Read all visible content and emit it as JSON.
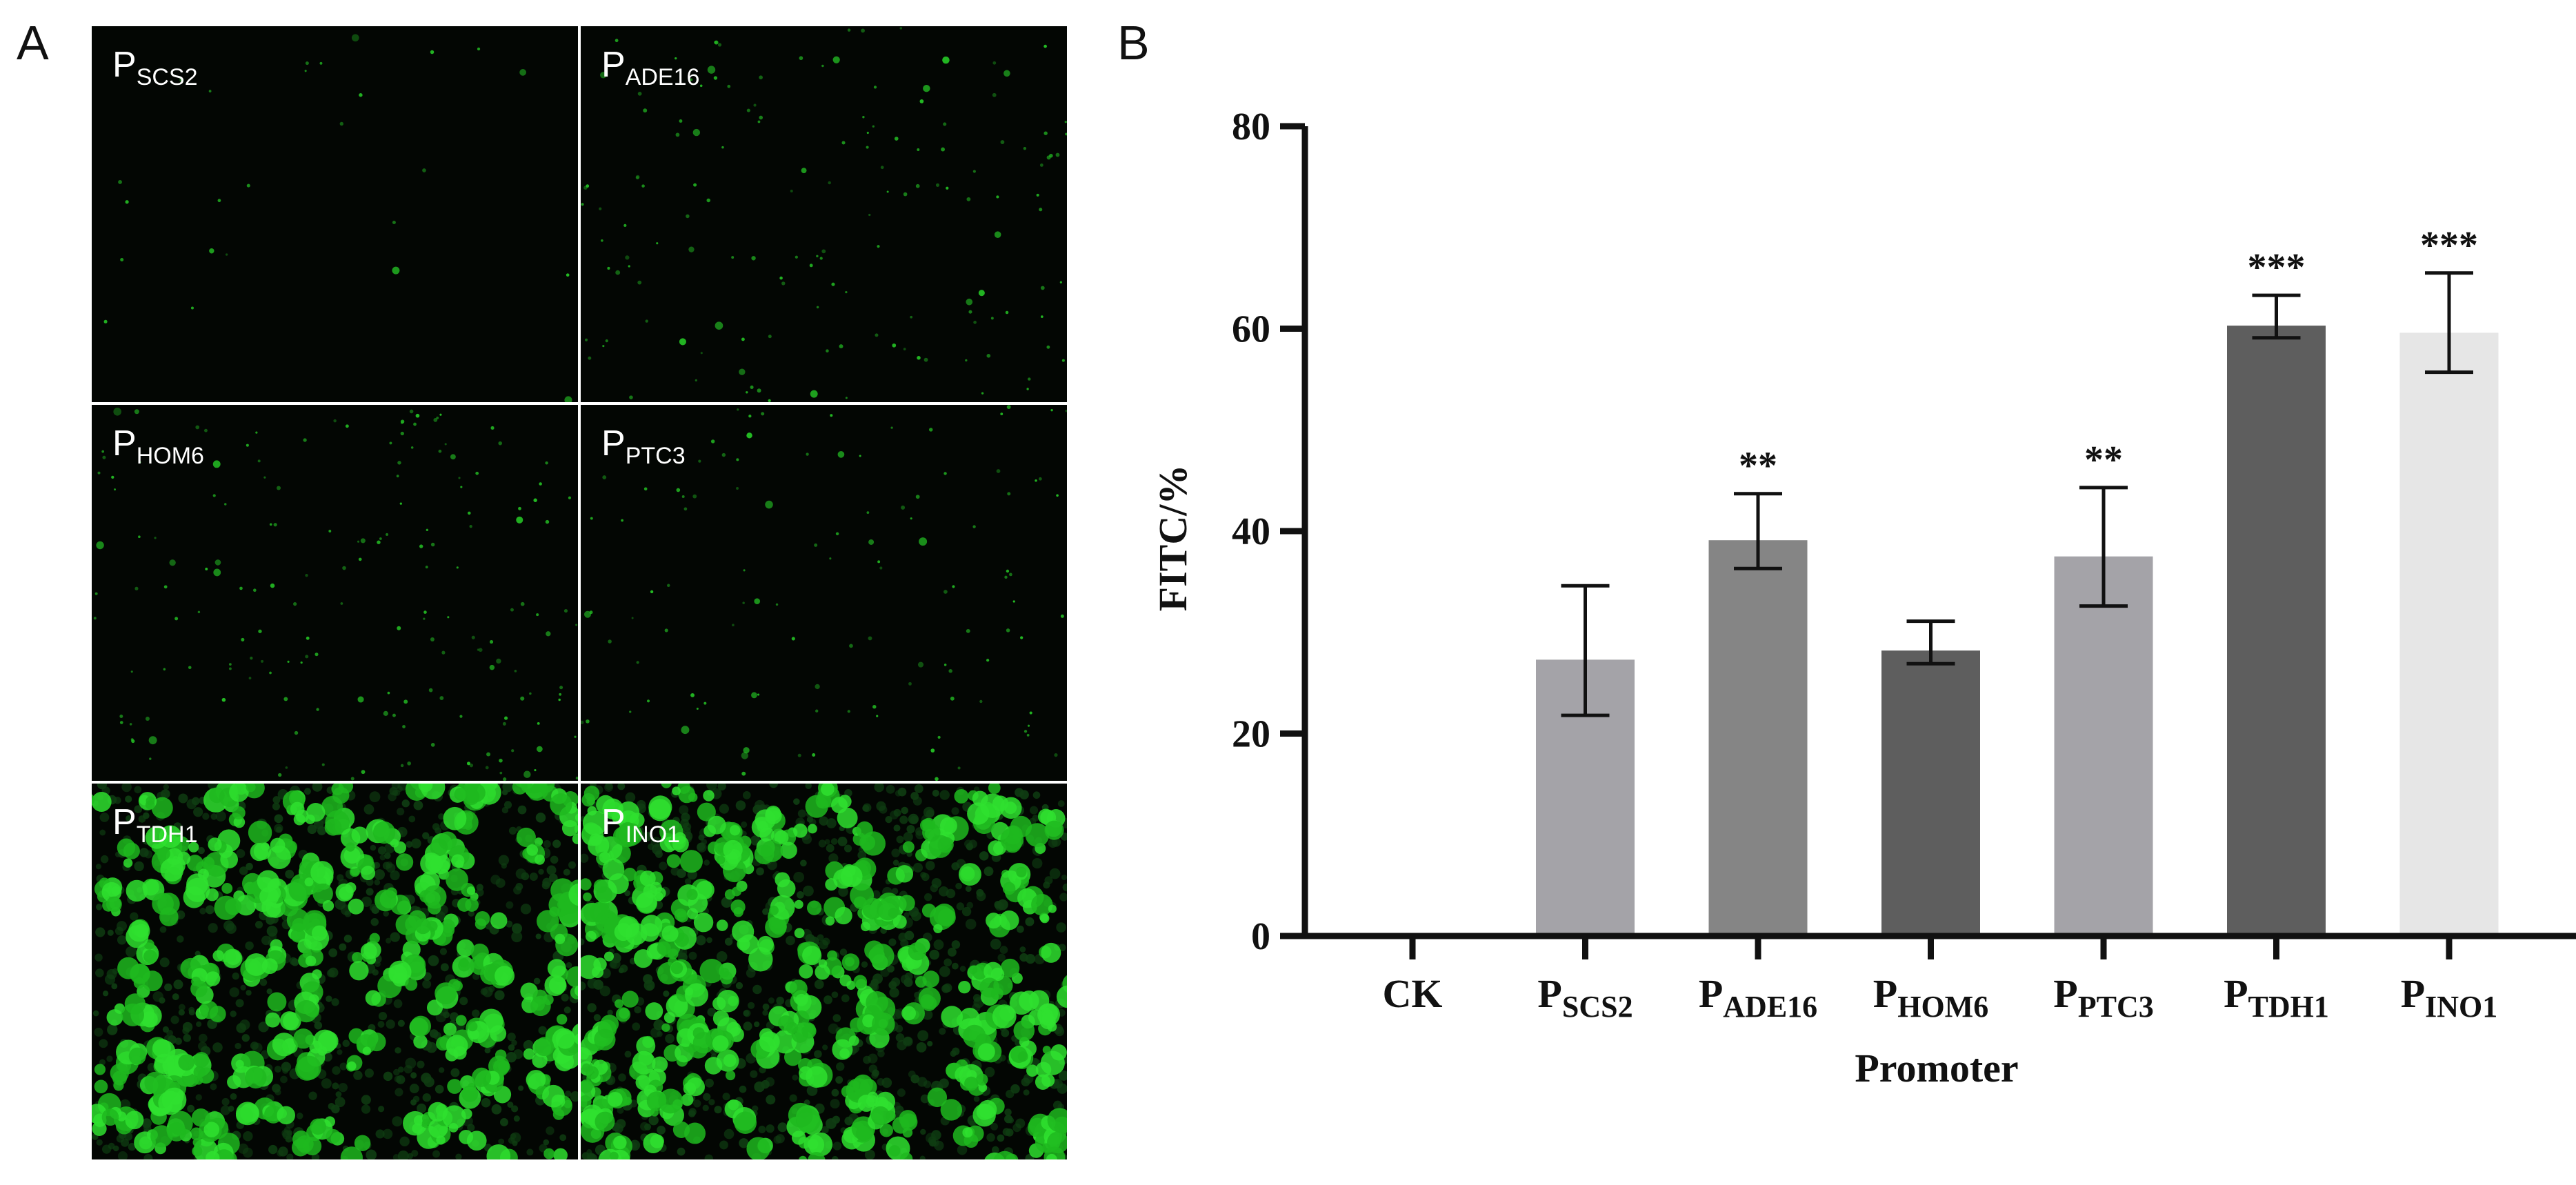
{
  "panel_a": {
    "letter": "A",
    "images": [
      {
        "prefix": "P",
        "sub": "SCS2",
        "intensity": 0.02
      },
      {
        "prefix": "P",
        "sub": "ADE16",
        "intensity": 0.25
      },
      {
        "prefix": "P",
        "sub": "HOM6",
        "intensity": 0.3
      },
      {
        "prefix": "P",
        "sub": "PTC3",
        "intensity": 0.18
      },
      {
        "prefix": "P",
        "sub": "TDH1",
        "intensity": 0.85
      },
      {
        "prefix": "P",
        "sub": "INO1",
        "intensity": 0.95
      }
    ]
  },
  "panel_b": {
    "letter": "B"
  },
  "chart_data": {
    "type": "bar",
    "categories": [
      {
        "main": "CK",
        "sub": ""
      },
      {
        "main": "P",
        "sub": "SCS2"
      },
      {
        "main": "P",
        "sub": "ADE16"
      },
      {
        "main": "P",
        "sub": "HOM6"
      },
      {
        "main": "P",
        "sub": "PTC3"
      },
      {
        "main": "P",
        "sub": "TDH1"
      },
      {
        "main": "P",
        "sub": "INO1"
      }
    ],
    "values": [
      0,
      27.3,
      39.1,
      28.2,
      37.5,
      60.3,
      59.6
    ],
    "error_low": [
      null,
      21.8,
      36.3,
      26.9,
      32.6,
      59.1,
      55.7
    ],
    "error_high": [
      null,
      34.6,
      43.7,
      31.1,
      44.3,
      63.3,
      65.5
    ],
    "significance": [
      "",
      "",
      "**",
      "",
      "**",
      "***",
      "***"
    ],
    "colors": [
      "#ffffff",
      "#a4a3a8",
      "#858585",
      "#5e5e5e",
      "#a4a3a8",
      "#5e5e5e",
      "#e6e6e6"
    ],
    "ylabel": "FITC/%",
    "xlabel": "Promoter",
    "ylim": [
      0,
      80
    ],
    "yticks": [
      0,
      20,
      40,
      60,
      80
    ],
    "grid": false,
    "legend": "none"
  }
}
